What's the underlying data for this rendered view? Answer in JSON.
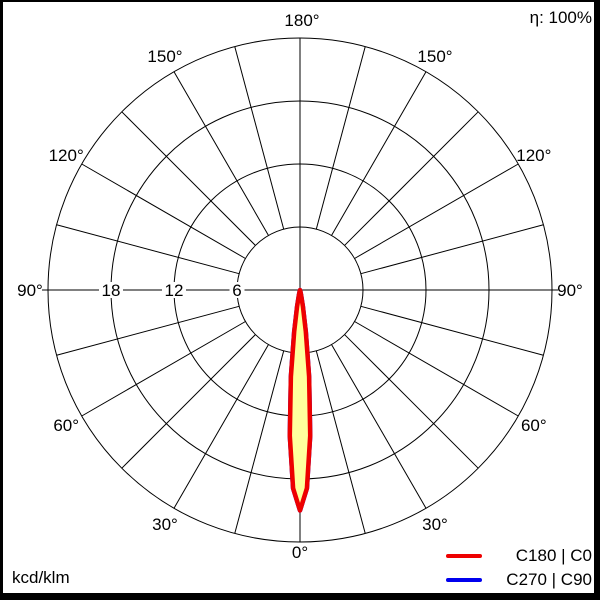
{
  "chart_data": {
    "type": "polar",
    "subtype": "luminous-intensity-distribution",
    "efficiency_label": "η: 100%",
    "units_label": "kcd/klm",
    "grid": true,
    "grid_color": "#000000",
    "angle_step_deg": 15,
    "angle_labels": [
      {
        "deg": 0,
        "label": "0°"
      },
      {
        "deg": 30,
        "label": "30°"
      },
      {
        "deg": 60,
        "label": "60°"
      },
      {
        "deg": 90,
        "label": "90°"
      },
      {
        "deg": 120,
        "label": "120°"
      },
      {
        "deg": 150,
        "label": "150°"
      },
      {
        "deg": 180,
        "label": "180°"
      }
    ],
    "radial_axis": {
      "unit_max": 24,
      "rings": [
        6,
        12,
        18,
        24
      ],
      "tick_labels": [
        {
          "value": 18,
          "label": "18"
        },
        {
          "value": 12,
          "label": "12"
        },
        {
          "value": 6,
          "label": "6"
        }
      ]
    },
    "peak_intensity_kcd_per_klm": 21,
    "peak_direction_deg": 0,
    "legend_position": "bottom-right",
    "series": [
      {
        "name": "C180 | C0",
        "color": "#ee0000",
        "fill": "#ffff9e",
        "profile_deg_kcdklm": [
          [
            0,
            21
          ],
          [
            2,
            18.9
          ],
          [
            4,
            13.9
          ],
          [
            6,
            8.3
          ],
          [
            8,
            4.0
          ],
          [
            10,
            1.6
          ],
          [
            12,
            0.5
          ],
          [
            14,
            0.15
          ],
          [
            16,
            0.04
          ],
          [
            18,
            0
          ]
        ]
      },
      {
        "name": "C270 | C90",
        "color": "#0000ee",
        "fill": "none",
        "profile_deg_kcdklm": [
          [
            0,
            21
          ],
          [
            2,
            18.9
          ],
          [
            4,
            13.9
          ],
          [
            6,
            8.3
          ],
          [
            8,
            4.0
          ],
          [
            10,
            1.6
          ],
          [
            12,
            0.5
          ],
          [
            14,
            0.15
          ],
          [
            16,
            0.04
          ],
          [
            18,
            0
          ]
        ]
      }
    ]
  }
}
